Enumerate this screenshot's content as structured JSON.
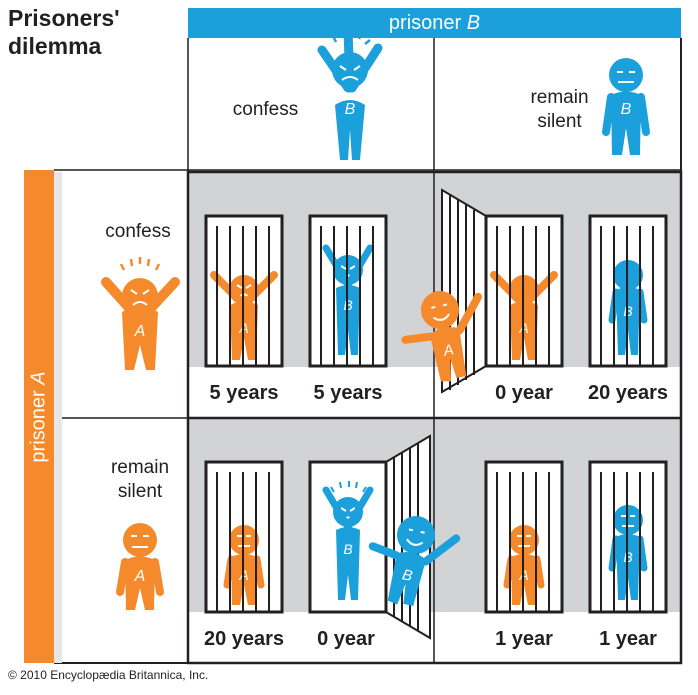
{
  "title": {
    "line1": "Prisoners'",
    "line2": "dilemma"
  },
  "prisoner_b_header": {
    "prefix": "prisoner ",
    "letter": "B"
  },
  "prisoner_a_header": {
    "prefix": "prisoner ",
    "letter": "A"
  },
  "columns": {
    "confess": {
      "line1": "confess"
    },
    "silent": {
      "line1": "remain",
      "line2": "silent"
    }
  },
  "rows": {
    "confess": {
      "line1": "confess"
    },
    "silent": {
      "line1": "remain",
      "line2": "silent"
    }
  },
  "figure_letters": {
    "a": "A",
    "b": "B"
  },
  "outcomes": {
    "cc": {
      "a": "5 years",
      "b": "5 years"
    },
    "cs": {
      "a": "0 year",
      "b": "20 years"
    },
    "sc": {
      "a": "20 years",
      "b": "0 year"
    },
    "ss": {
      "a": "1 year",
      "b": "1 year"
    }
  },
  "colors": {
    "orange": "#f58a2c",
    "blue": "#1ba0dc",
    "gray": "#d1d3d4",
    "black": "#231f20"
  },
  "copyright": "© 2010 Encyclopædia Britannica, Inc."
}
